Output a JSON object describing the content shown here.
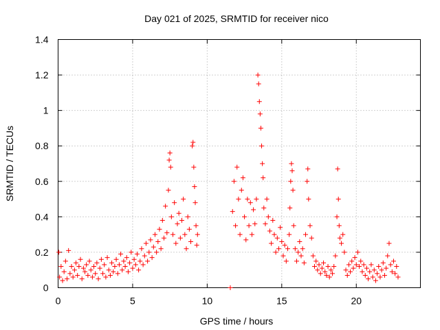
{
  "chart_data": {
    "type": "scatter",
    "title": "Day 021 of 2025, SRMTID for receiver nico",
    "xlabel": "GPS time / hours",
    "ylabel": "SRMTID / TECUs",
    "xlim": [
      0,
      24.3
    ],
    "ylim": [
      0,
      1.4
    ],
    "xticks": [
      0,
      5,
      10,
      15,
      20
    ],
    "xtick_labels": [
      "0",
      "5",
      "10",
      "15",
      "20"
    ],
    "yticks": [
      0,
      0.2,
      0.4,
      0.6,
      0.8,
      1.0,
      1.2,
      1.4
    ],
    "ytick_labels": [
      "0",
      "0.2",
      "0.4",
      "0.6",
      "0.8",
      "1",
      "1.2",
      "1.4"
    ],
    "grid": true,
    "marker": "+",
    "color": "#ff0000",
    "series": [
      {
        "name": "SRMTID",
        "points": [
          [
            0.05,
            0.2
          ],
          [
            0.1,
            0.06
          ],
          [
            0.2,
            0.12
          ],
          [
            0.3,
            0.04
          ],
          [
            0.4,
            0.09
          ],
          [
            0.5,
            0.15
          ],
          [
            0.6,
            0.05
          ],
          [
            0.7,
            0.21
          ],
          [
            0.8,
            0.08
          ],
          [
            0.9,
            0.12
          ],
          [
            1.0,
            0.06
          ],
          [
            1.1,
            0.1
          ],
          [
            1.2,
            0.14
          ],
          [
            1.3,
            0.07
          ],
          [
            1.4,
            0.12
          ],
          [
            1.5,
            0.16
          ],
          [
            1.6,
            0.05
          ],
          [
            1.7,
            0.11
          ],
          [
            1.8,
            0.09
          ],
          [
            1.9,
            0.13
          ],
          [
            2.0,
            0.07
          ],
          [
            2.1,
            0.15
          ],
          [
            2.2,
            0.1
          ],
          [
            2.3,
            0.06
          ],
          [
            2.4,
            0.12
          ],
          [
            2.5,
            0.08
          ],
          [
            2.6,
            0.14
          ],
          [
            2.7,
            0.05
          ],
          [
            2.8,
            0.11
          ],
          [
            2.9,
            0.16
          ],
          [
            3.0,
            0.08
          ],
          [
            3.1,
            0.13
          ],
          [
            3.2,
            0.06
          ],
          [
            3.3,
            0.17
          ],
          [
            3.4,
            0.1
          ],
          [
            3.5,
            0.07
          ],
          [
            3.6,
            0.14
          ],
          [
            3.7,
            0.09
          ],
          [
            3.8,
            0.12
          ],
          [
            3.9,
            0.16
          ],
          [
            4.0,
            0.08
          ],
          [
            4.1,
            0.13
          ],
          [
            4.2,
            0.19
          ],
          [
            4.3,
            0.1
          ],
          [
            4.4,
            0.15
          ],
          [
            4.5,
            0.12
          ],
          [
            4.6,
            0.17
          ],
          [
            4.7,
            0.09
          ],
          [
            4.8,
            0.14
          ],
          [
            4.9,
            0.2
          ],
          [
            5.0,
            0.11
          ],
          [
            5.1,
            0.16
          ],
          [
            5.2,
            0.13
          ],
          [
            5.3,
            0.19
          ],
          [
            5.4,
            0.1
          ],
          [
            5.5,
            0.15
          ],
          [
            5.6,
            0.22
          ],
          [
            5.7,
            0.13
          ],
          [
            5.8,
            0.18
          ],
          [
            5.9,
            0.25
          ],
          [
            6.0,
            0.15
          ],
          [
            6.1,
            0.2
          ],
          [
            6.2,
            0.27
          ],
          [
            6.3,
            0.17
          ],
          [
            6.4,
            0.23
          ],
          [
            6.5,
            0.3
          ],
          [
            6.6,
            0.2
          ],
          [
            6.7,
            0.26
          ],
          [
            6.8,
            0.33
          ],
          [
            6.9,
            0.22
          ],
          [
            7.0,
            0.38
          ],
          [
            7.1,
            0.28
          ],
          [
            7.2,
            0.46
          ],
          [
            7.3,
            0.31
          ],
          [
            7.4,
            0.55
          ],
          [
            7.45,
            0.72
          ],
          [
            7.5,
            0.76
          ],
          [
            7.55,
            0.68
          ],
          [
            7.6,
            0.4
          ],
          [
            7.7,
            0.3
          ],
          [
            7.8,
            0.48
          ],
          [
            7.9,
            0.25
          ],
          [
            8.0,
            0.36
          ],
          [
            8.1,
            0.42
          ],
          [
            8.2,
            0.28
          ],
          [
            8.3,
            0.38
          ],
          [
            8.4,
            0.5
          ],
          [
            8.5,
            0.3
          ],
          [
            8.6,
            0.22
          ],
          [
            8.7,
            0.4
          ],
          [
            8.8,
            0.33
          ],
          [
            8.9,
            0.26
          ],
          [
            9.0,
            0.8
          ],
          [
            9.05,
            0.82
          ],
          [
            9.1,
            0.68
          ],
          [
            9.15,
            0.57
          ],
          [
            9.2,
            0.48
          ],
          [
            9.25,
            0.35
          ],
          [
            9.3,
            0.24
          ],
          [
            9.35,
            0.3
          ],
          [
            11.55,
            0.0
          ],
          [
            11.7,
            0.43
          ],
          [
            11.8,
            0.6
          ],
          [
            11.9,
            0.35
          ],
          [
            12.0,
            0.68
          ],
          [
            12.1,
            0.5
          ],
          [
            12.2,
            0.3
          ],
          [
            12.3,
            0.55
          ],
          [
            12.4,
            0.62
          ],
          [
            12.5,
            0.4
          ],
          [
            12.6,
            0.27
          ],
          [
            12.7,
            0.5
          ],
          [
            12.8,
            0.35
          ],
          [
            12.9,
            0.48
          ],
          [
            13.0,
            0.3
          ],
          [
            13.1,
            0.44
          ],
          [
            13.2,
            0.36
          ],
          [
            13.3,
            0.5
          ],
          [
            13.4,
            1.2
          ],
          [
            13.45,
            1.15
          ],
          [
            13.5,
            1.05
          ],
          [
            13.55,
            0.98
          ],
          [
            13.6,
            0.9
          ],
          [
            13.65,
            0.8
          ],
          [
            13.7,
            0.7
          ],
          [
            13.75,
            0.62
          ],
          [
            13.8,
            0.45
          ],
          [
            13.9,
            0.36
          ],
          [
            14.0,
            0.5
          ],
          [
            14.1,
            0.4
          ],
          [
            14.2,
            0.32
          ],
          [
            14.3,
            0.25
          ],
          [
            14.4,
            0.38
          ],
          [
            14.5,
            0.3
          ],
          [
            14.6,
            0.2
          ],
          [
            14.7,
            0.28
          ],
          [
            14.8,
            0.22
          ],
          [
            14.9,
            0.34
          ],
          [
            15.0,
            0.26
          ],
          [
            15.1,
            0.18
          ],
          [
            15.2,
            0.24
          ],
          [
            15.3,
            0.15
          ],
          [
            15.4,
            0.22
          ],
          [
            15.5,
            0.3
          ],
          [
            15.55,
            0.45
          ],
          [
            15.6,
            0.6
          ],
          [
            15.65,
            0.7
          ],
          [
            15.7,
            0.66
          ],
          [
            15.75,
            0.55
          ],
          [
            15.8,
            0.35
          ],
          [
            15.9,
            0.22
          ],
          [
            16.0,
            0.15
          ],
          [
            16.1,
            0.2
          ],
          [
            16.2,
            0.26
          ],
          [
            16.3,
            0.18
          ],
          [
            16.4,
            0.22
          ],
          [
            16.5,
            0.14
          ],
          [
            16.6,
            0.3
          ],
          [
            16.7,
            0.6
          ],
          [
            16.75,
            0.67
          ],
          [
            16.8,
            0.5
          ],
          [
            16.9,
            0.35
          ],
          [
            17.0,
            0.28
          ],
          [
            17.1,
            0.18
          ],
          [
            17.2,
            0.12
          ],
          [
            17.3,
            0.15
          ],
          [
            17.4,
            0.1
          ],
          [
            17.5,
            0.13
          ],
          [
            17.6,
            0.08
          ],
          [
            17.7,
            0.11
          ],
          [
            17.8,
            0.14
          ],
          [
            17.9,
            0.09
          ],
          [
            18.0,
            0.07
          ],
          [
            18.1,
            0.12
          ],
          [
            18.2,
            0.06
          ],
          [
            18.3,
            0.1
          ],
          [
            18.4,
            0.08
          ],
          [
            18.5,
            0.12
          ],
          [
            18.6,
            0.18
          ],
          [
            18.7,
            0.4
          ],
          [
            18.75,
            0.67
          ],
          [
            18.8,
            0.5
          ],
          [
            18.85,
            0.35
          ],
          [
            18.9,
            0.28
          ],
          [
            19.0,
            0.25
          ],
          [
            19.1,
            0.3
          ],
          [
            19.2,
            0.2
          ],
          [
            19.3,
            0.1
          ],
          [
            19.4,
            0.07
          ],
          [
            19.5,
            0.13
          ],
          [
            19.6,
            0.09
          ],
          [
            19.7,
            0.15
          ],
          [
            19.8,
            0.11
          ],
          [
            19.9,
            0.17
          ],
          [
            20.0,
            0.13
          ],
          [
            20.1,
            0.2
          ],
          [
            20.2,
            0.12
          ],
          [
            20.3,
            0.15
          ],
          [
            20.4,
            0.09
          ],
          [
            20.5,
            0.13
          ],
          [
            20.6,
            0.07
          ],
          [
            20.7,
            0.11
          ],
          [
            20.8,
            0.05
          ],
          [
            20.9,
            0.09
          ],
          [
            21.0,
            0.13
          ],
          [
            21.1,
            0.06
          ],
          [
            21.2,
            0.1
          ],
          [
            21.3,
            0.04
          ],
          [
            21.4,
            0.08
          ],
          [
            21.5,
            0.12
          ],
          [
            21.6,
            0.06
          ],
          [
            21.7,
            0.1
          ],
          [
            21.8,
            0.14
          ],
          [
            21.9,
            0.07
          ],
          [
            22.0,
            0.11
          ],
          [
            22.1,
            0.18
          ],
          [
            22.2,
            0.25
          ],
          [
            22.3,
            0.13
          ],
          [
            22.4,
            0.09
          ],
          [
            22.5,
            0.15
          ],
          [
            22.6,
            0.08
          ],
          [
            22.7,
            0.12
          ],
          [
            22.8,
            0.06
          ]
        ]
      }
    ]
  }
}
